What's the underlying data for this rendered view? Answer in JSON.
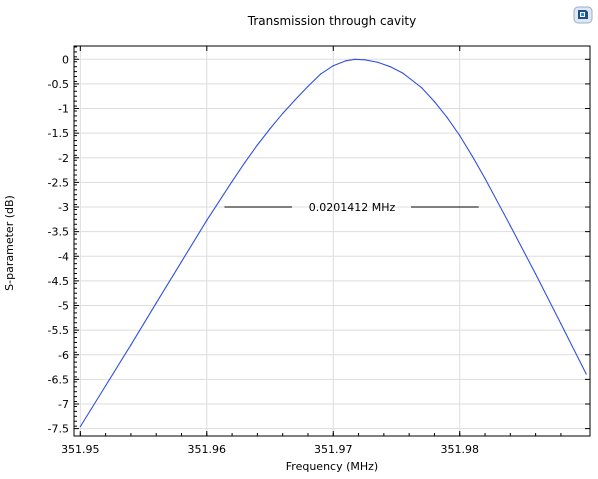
{
  "chart_data": {
    "type": "line",
    "title": "Transmission through cavity",
    "xlabel": "Frequency (MHz)",
    "ylabel": "S-parameter (dB)",
    "xlim": [
      351.9495,
      351.9903
    ],
    "ylim": [
      -7.65,
      0.27
    ],
    "xticks": [
      351.95,
      351.96,
      351.97,
      351.98
    ],
    "xtick_labels": [
      "351.95",
      "351.96",
      "351.97",
      "351.98"
    ],
    "yticks": [
      0,
      -0.5,
      -1,
      -1.5,
      -2,
      -2.5,
      -3,
      -3.5,
      -4,
      -4.5,
      -5,
      -5.5,
      -6,
      -6.5,
      -7,
      -7.5
    ],
    "ytick_labels": [
      "0",
      "-0.5",
      "-1",
      "-1.5",
      "-2",
      "-2.5",
      "-3",
      "-3.5",
      "-4",
      "-4.5",
      "-5",
      "-5.5",
      "-6",
      "-6.5",
      "-7",
      "-7.5"
    ],
    "grid": true,
    "series": [
      {
        "color": "#3050e0",
        "x": [
          351.95,
          351.952,
          351.954,
          351.956,
          351.958,
          351.96,
          351.962,
          351.963,
          351.964,
          351.965,
          351.966,
          351.967,
          351.968,
          351.969,
          351.97,
          351.971,
          351.9717,
          351.9725,
          351.9735,
          351.9745,
          351.9755,
          351.977,
          351.978,
          351.979,
          351.98,
          351.981,
          351.982,
          351.984,
          351.986,
          351.988,
          351.99
        ],
        "y": [
          -7.46,
          -6.63,
          -5.8,
          -4.95,
          -4.11,
          -3.27,
          -2.48,
          -2.1,
          -1.74,
          -1.41,
          -1.1,
          -0.82,
          -0.55,
          -0.3,
          -0.13,
          -0.03,
          0.0,
          -0.01,
          -0.06,
          -0.15,
          -0.28,
          -0.58,
          -0.86,
          -1.18,
          -1.55,
          -1.97,
          -2.42,
          -3.38,
          -4.36,
          -5.37,
          -6.39
        ]
      }
    ],
    "annotation": {
      "text": "0.0201412 MHz",
      "y": -3,
      "x_left": 351.9614,
      "x_right": 351.9815
    }
  },
  "icons": {
    "corner": "comsol-logo-icon"
  }
}
